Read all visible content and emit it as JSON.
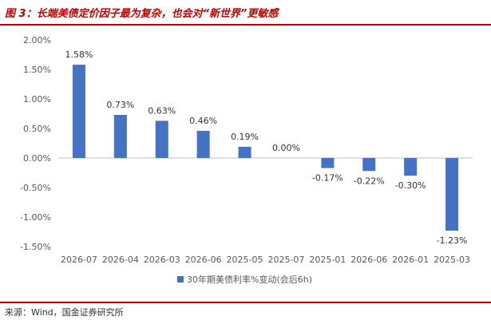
{
  "header": {
    "title": "图 3：长端美债定价因子最为复杂，也会对“新世界”更敏感"
  },
  "footer": {
    "source": "来源：Wind，国金证券研究所"
  },
  "chart_data": {
    "type": "bar",
    "title": "",
    "xlabel": "",
    "ylabel": "",
    "categories": [
      "2026-07",
      "2026-04",
      "2026-03",
      "2026-06",
      "2025-05",
      "2025-07",
      "2025-01",
      "2026-06",
      "2026-01",
      "2025-03"
    ],
    "series": [
      {
        "name": "30年期美债利率%变动(会后6h)",
        "values": [
          1.58,
          0.73,
          0.63,
          0.46,
          0.19,
          0.0,
          -0.17,
          -0.22,
          -0.3,
          -1.23
        ],
        "data_labels": [
          "1.58%",
          "0.73%",
          "0.63%",
          "0.46%",
          "0.19%",
          "0.00%",
          "-0.17%",
          "-0.22%",
          "-0.30%",
          "-1.23%"
        ],
        "color": "#4472c4"
      }
    ],
    "ylim": [
      -1.5,
      2.0
    ],
    "yticks": [
      2.0,
      1.5,
      1.0,
      0.5,
      0.0,
      -0.5,
      -1.0,
      -1.5
    ],
    "ytick_labels": [
      "2.00%",
      "1.50%",
      "1.00%",
      "0.50%",
      "0.00%",
      "-0.50%",
      "-1.00%",
      "-1.50%"
    ],
    "grid": false,
    "legend_position": "bottom"
  }
}
